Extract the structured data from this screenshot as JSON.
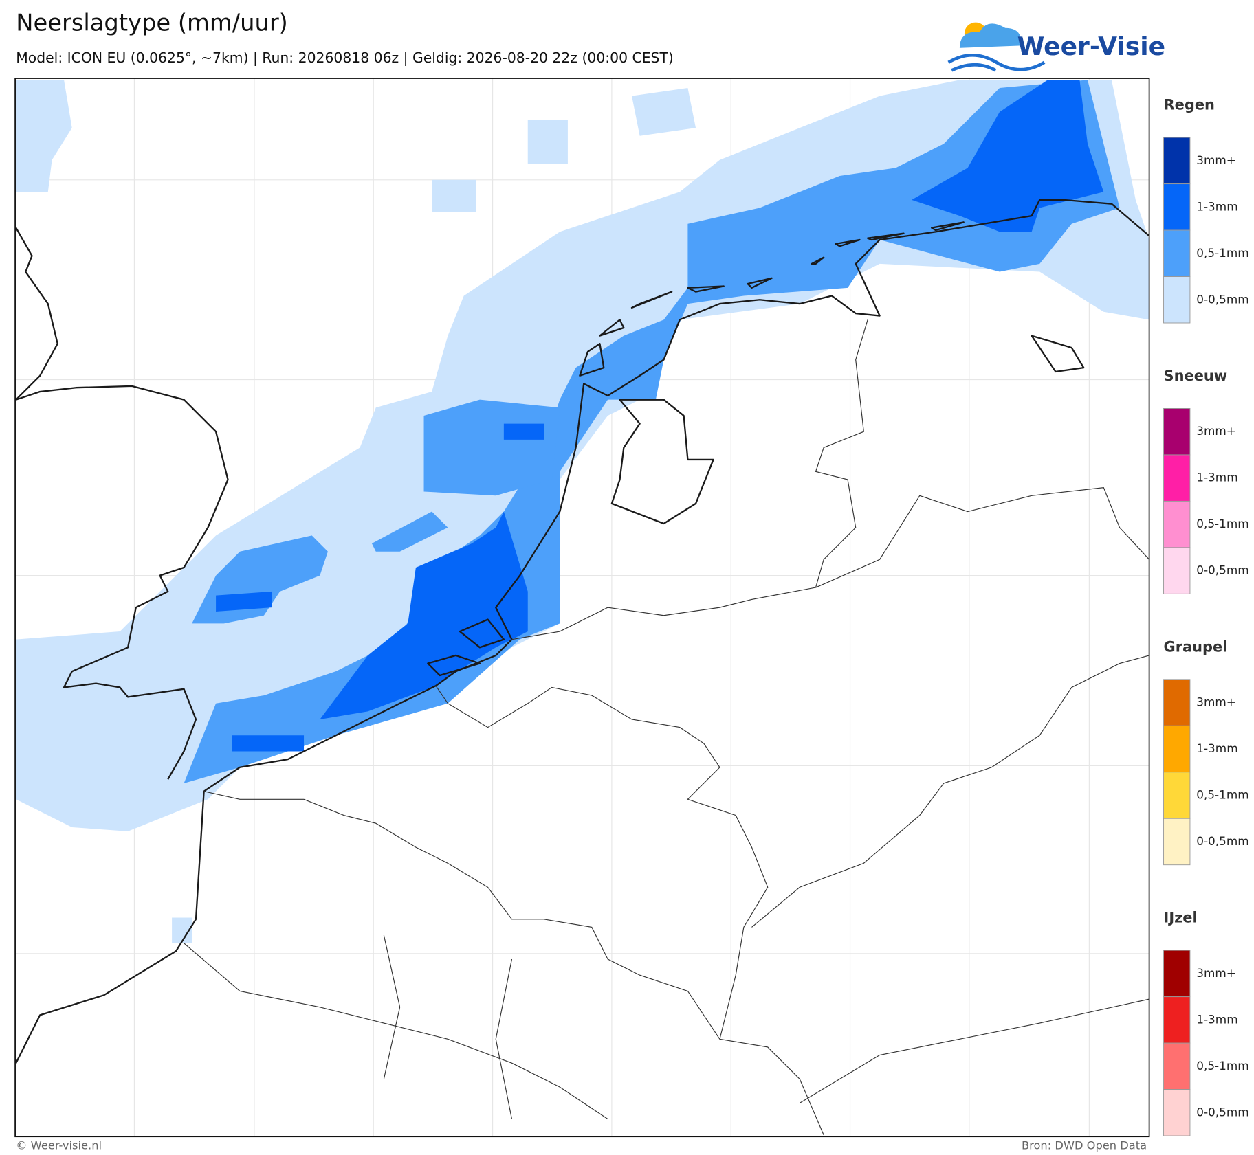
{
  "header": {
    "title": "Neerslagtype (mm/uur)",
    "subtitle": "Model: ICON EU (0.0625°, ~7km)  |  Run: 20260818 06z  |  Geldig: 2026-08-20 22z (00:00 CEST)",
    "logo": "Weer-Visie"
  },
  "legend": [
    {
      "title": "Regen",
      "items": [
        {
          "label": "3mm+",
          "color": "#0033aa"
        },
        {
          "label": "1-3mm",
          "color": "#0566f8"
        },
        {
          "label": "0,5-1mm",
          "color": "#4da0fa"
        },
        {
          "label": "0-0,5mm",
          "color": "#cce4fd"
        }
      ]
    },
    {
      "title": "Sneeuw",
      "items": [
        {
          "label": "3mm+",
          "color": "#a8006e"
        },
        {
          "label": "1-3mm",
          "color": "#ff1fa6"
        },
        {
          "label": "0,5-1mm",
          "color": "#ff8fd0"
        },
        {
          "label": "0-0,5mm",
          "color": "#ffd7ee"
        }
      ]
    },
    {
      "title": "Graupel",
      "items": [
        {
          "label": "3mm+",
          "color": "#e06a00"
        },
        {
          "label": "1-3mm",
          "color": "#ffa800"
        },
        {
          "label": "0,5-1mm",
          "color": "#ffd838"
        },
        {
          "label": "0-0,5mm",
          "color": "#fff2c4"
        }
      ]
    },
    {
      "title": "IJzel",
      "items": [
        {
          "label": "3mm+",
          "color": "#a00000"
        },
        {
          "label": "1-3mm",
          "color": "#ee2020"
        },
        {
          "label": "0,5-1mm",
          "color": "#ff7070"
        },
        {
          "label": "0-0,5mm",
          "color": "#ffd2d2"
        }
      ]
    }
  ],
  "footer": {
    "left": "© Weer-visie.nl",
    "right": "Bron: DWD Open Data"
  }
}
